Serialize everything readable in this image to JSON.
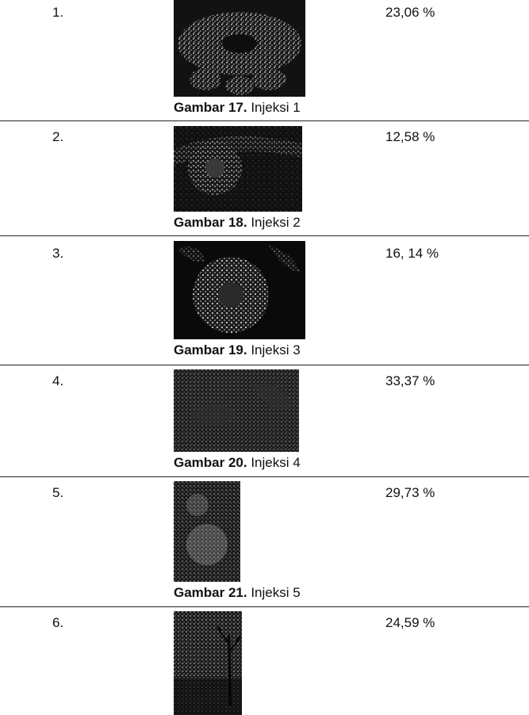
{
  "rows": [
    {
      "number": "1.",
      "percent": "23,06 %",
      "caption_label": "Gambar 17.",
      "caption_text": " Injeksi 1"
    },
    {
      "number": "2.",
      "percent": "12,58 %",
      "caption_label": "Gambar 18.",
      "caption_text": " Injeksi 2"
    },
    {
      "number": "3.",
      "percent": "16, 14 %",
      "caption_label": "Gambar 19.",
      "caption_text": " Injeksi 3"
    },
    {
      "number": "4.",
      "percent": "33,37 %",
      "caption_label": "Gambar 20.",
      "caption_text": " Injeksi 4"
    },
    {
      "number": "5.",
      "percent": "29,73 %",
      "caption_label": "Gambar 21.",
      "caption_text": " Injeksi 5"
    },
    {
      "number": "6.",
      "percent": "24,59 %"
    }
  ]
}
